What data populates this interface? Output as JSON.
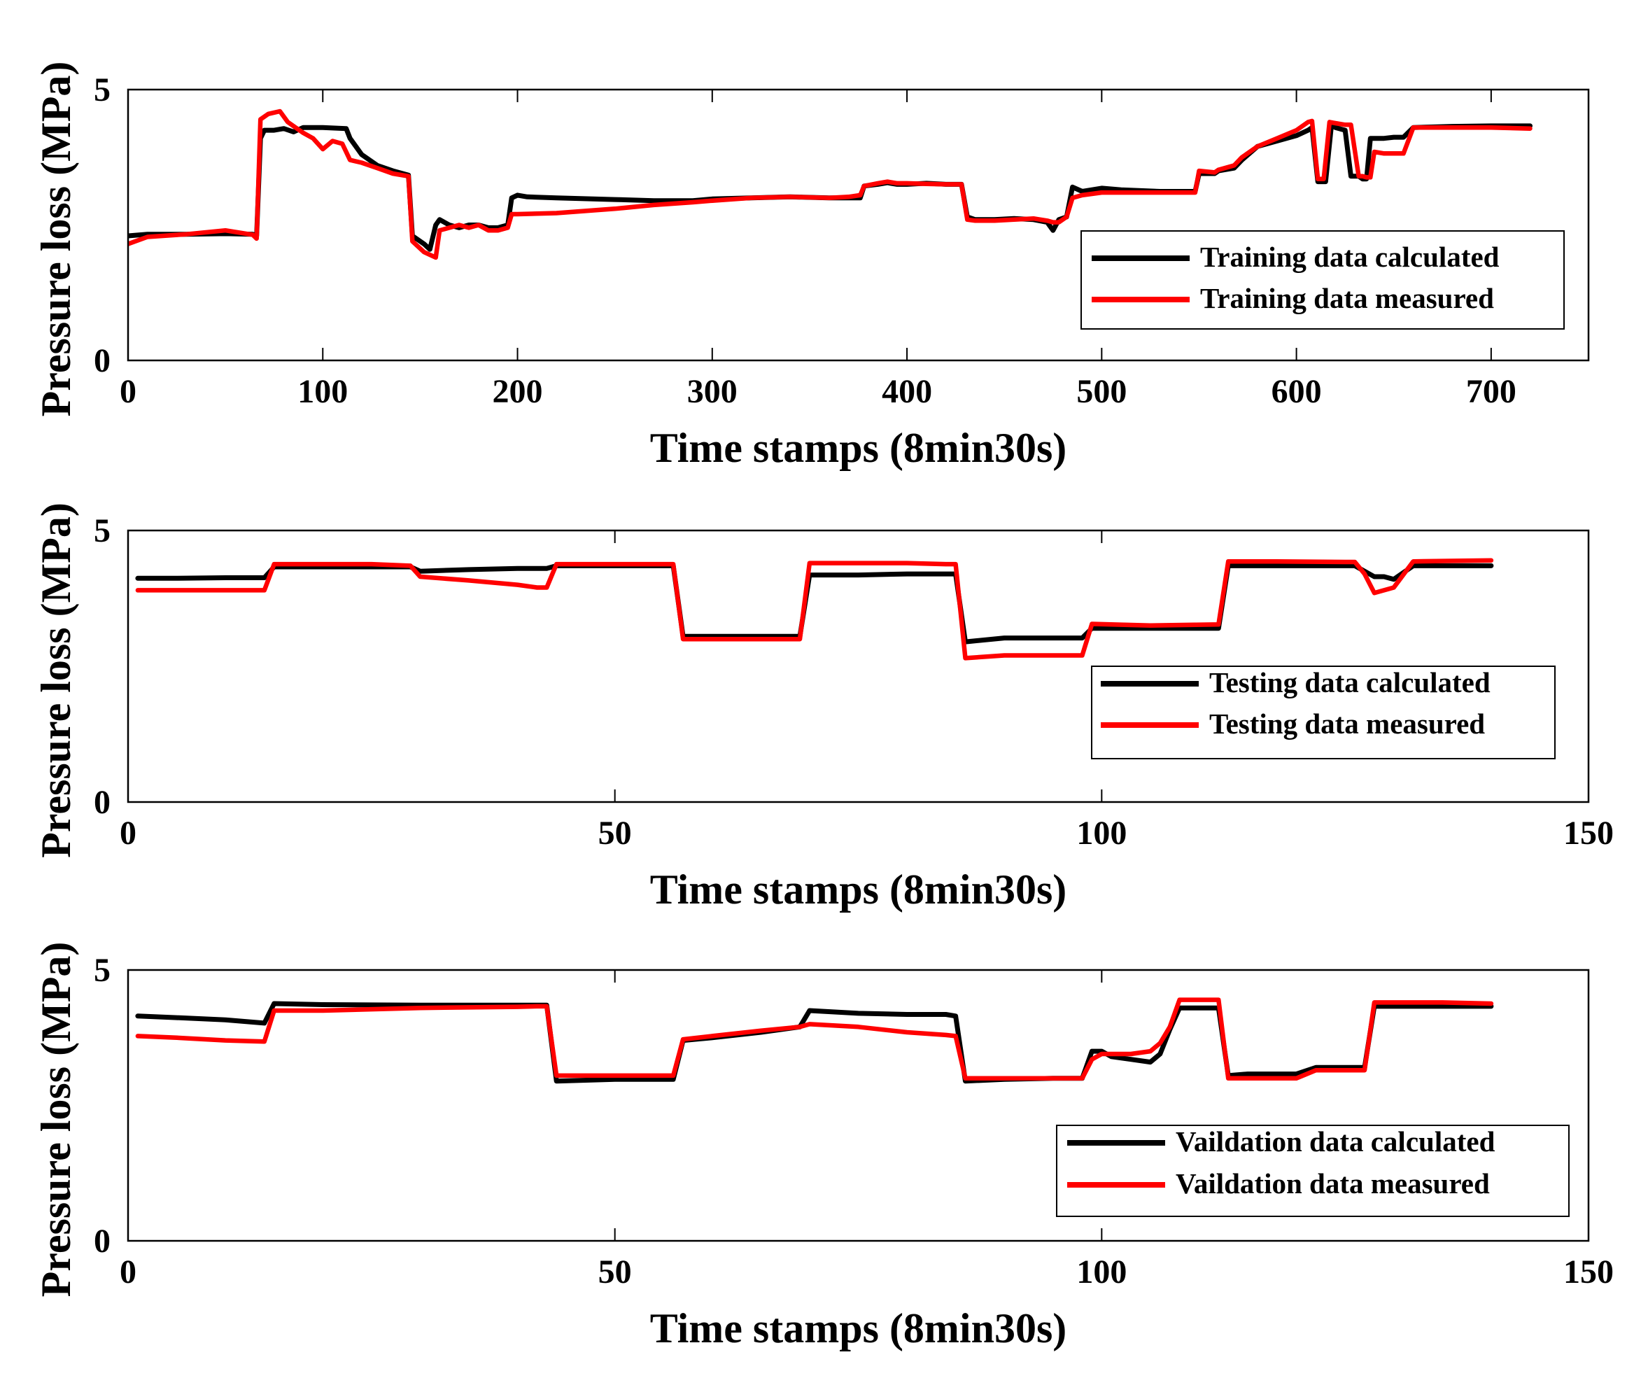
{
  "chart_data": [
    {
      "type": "line",
      "title": "",
      "xlabel": "Time stamps (8min30s)",
      "ylabel": "Pressure loss (MPa)",
      "xlim": [
        0,
        750
      ],
      "ylim": [
        0,
        5
      ],
      "xticks": [
        0,
        100,
        200,
        300,
        400,
        500,
        600,
        700
      ],
      "yticks": [
        0,
        5
      ],
      "grid": false,
      "legend_position": "bottom-right",
      "series": [
        {
          "name": "Training data calculated",
          "color": "#000000",
          "x": [
            0,
            10,
            30,
            50,
            64,
            66,
            68,
            70,
            75,
            80,
            85,
            90,
            100,
            112,
            114,
            120,
            128,
            136,
            144,
            146,
            152,
            155,
            158,
            160,
            165,
            170,
            175,
            180,
            185,
            190,
            195,
            197,
            200,
            205,
            220,
            250,
            270,
            290,
            300,
            320,
            340,
            360,
            370,
            376,
            378,
            385,
            390,
            395,
            400,
            410,
            420,
            428,
            431,
            435,
            445,
            455,
            465,
            472,
            475,
            478,
            482,
            485,
            490,
            500,
            510,
            530,
            540,
            548,
            550,
            558,
            560,
            568,
            572,
            580,
            590,
            600,
            606,
            608,
            611,
            615,
            618,
            620,
            625,
            628,
            632,
            634,
            636,
            638,
            640,
            645,
            650,
            655,
            660,
            680,
            700,
            720
          ],
          "y": [
            2.3,
            2.33,
            2.33,
            2.34,
            2.33,
            2.3,
            4.1,
            4.25,
            4.25,
            4.28,
            4.22,
            4.3,
            4.3,
            4.28,
            4.1,
            3.8,
            3.6,
            3.5,
            3.42,
            2.3,
            2.15,
            2.05,
            2.5,
            2.6,
            2.5,
            2.45,
            2.5,
            2.5,
            2.45,
            2.45,
            2.5,
            3.0,
            3.05,
            3.02,
            3.0,
            2.97,
            2.95,
            2.95,
            2.98,
            3.0,
            3.02,
            3.0,
            3.0,
            3.0,
            3.22,
            3.25,
            3.28,
            3.25,
            3.25,
            3.27,
            3.25,
            3.25,
            2.65,
            2.6,
            2.6,
            2.62,
            2.6,
            2.55,
            2.4,
            2.6,
            2.65,
            3.2,
            3.12,
            3.18,
            3.15,
            3.12,
            3.12,
            3.12,
            3.45,
            3.45,
            3.5,
            3.55,
            3.7,
            3.95,
            4.05,
            4.15,
            4.25,
            4.3,
            3.3,
            3.3,
            4.35,
            4.3,
            4.25,
            3.4,
            3.4,
            3.35,
            3.35,
            4.1,
            4.1,
            4.1,
            4.12,
            4.12,
            4.3,
            4.32,
            4.33,
            4.33
          ]
        },
        {
          "name": "Training data measured",
          "color": "#ff0000",
          "x": [
            0,
            10,
            30,
            50,
            64,
            66,
            68,
            72,
            78,
            82,
            86,
            90,
            95,
            100,
            105,
            110,
            114,
            120,
            128,
            136,
            144,
            146,
            152,
            155,
            158,
            160,
            165,
            170,
            175,
            180,
            185,
            190,
            195,
            197,
            200,
            220,
            250,
            270,
            290,
            300,
            320,
            340,
            360,
            370,
            376,
            378,
            385,
            390,
            395,
            400,
            410,
            420,
            428,
            431,
            435,
            445,
            455,
            465,
            472,
            475,
            478,
            482,
            485,
            490,
            500,
            510,
            530,
            540,
            548,
            550,
            558,
            560,
            568,
            572,
            580,
            590,
            600,
            606,
            608,
            611,
            614,
            617,
            620,
            625,
            628,
            632,
            634,
            636,
            638,
            640,
            645,
            650,
            655,
            660,
            680,
            700,
            720
          ],
          "y": [
            2.15,
            2.28,
            2.33,
            2.4,
            2.32,
            2.25,
            4.45,
            4.55,
            4.6,
            4.4,
            4.3,
            4.2,
            4.1,
            3.9,
            4.05,
            4.0,
            3.7,
            3.65,
            3.55,
            3.45,
            3.4,
            2.2,
            2.0,
            1.95,
            1.9,
            2.4,
            2.45,
            2.5,
            2.45,
            2.5,
            2.4,
            2.4,
            2.45,
            2.7,
            2.7,
            2.72,
            2.8,
            2.87,
            2.92,
            2.95,
            3.0,
            3.02,
            3.0,
            3.02,
            3.05,
            3.22,
            3.27,
            3.3,
            3.27,
            3.27,
            3.26,
            3.25,
            3.25,
            2.6,
            2.58,
            2.58,
            2.6,
            2.62,
            2.58,
            2.55,
            2.55,
            2.65,
            3.0,
            3.05,
            3.1,
            3.1,
            3.1,
            3.1,
            3.1,
            3.5,
            3.47,
            3.52,
            3.6,
            3.75,
            3.95,
            4.1,
            4.25,
            4.4,
            4.42,
            3.35,
            3.35,
            4.4,
            4.38,
            4.35,
            4.35,
            3.4,
            3.4,
            3.38,
            3.38,
            3.85,
            3.82,
            3.82,
            3.82,
            4.3,
            4.3,
            4.3,
            4.28
          ]
        }
      ]
    },
    {
      "type": "line",
      "title": "",
      "xlabel": "Time stamps (8min30s)",
      "ylabel": "Pressure loss (MPa)",
      "xlim": [
        0,
        150
      ],
      "ylim": [
        0,
        5
      ],
      "xticks": [
        0,
        50,
        100,
        150
      ],
      "yticks": [
        0,
        5
      ],
      "grid": false,
      "legend_position": "bottom-right",
      "series": [
        {
          "name": "Testing data calculated",
          "color": "#000000",
          "x": [
            1,
            5,
            10,
            14,
            15,
            20,
            25,
            29,
            30,
            35,
            40,
            43,
            44,
            50,
            55,
            56,
            57,
            60,
            65,
            69,
            70,
            75,
            80,
            84,
            85,
            86,
            90,
            95,
            98,
            99,
            105,
            112,
            113,
            118,
            125,
            126,
            128,
            129,
            130,
            132,
            140
          ],
          "y": [
            4.12,
            4.12,
            4.13,
            4.13,
            4.33,
            4.33,
            4.33,
            4.33,
            4.25,
            4.28,
            4.3,
            4.3,
            4.35,
            4.35,
            4.35,
            4.35,
            3.05,
            3.05,
            3.05,
            3.05,
            4.18,
            4.18,
            4.2,
            4.2,
            4.2,
            2.95,
            3.02,
            3.02,
            3.02,
            3.2,
            3.2,
            3.2,
            4.35,
            4.35,
            4.35,
            4.35,
            4.15,
            4.15,
            4.1,
            4.35,
            4.35
          ]
        },
        {
          "name": "Testing data measured",
          "color": "#ff0000",
          "x": [
            1,
            5,
            10,
            14,
            15,
            20,
            25,
            29,
            30,
            35,
            40,
            42,
            43,
            44,
            50,
            55,
            56,
            57,
            60,
            65,
            69,
            70,
            75,
            80,
            84,
            85,
            86,
            90,
            95,
            98,
            99,
            105,
            112,
            113,
            118,
            125,
            126,
            127,
            128,
            130,
            132,
            140
          ],
          "y": [
            3.9,
            3.9,
            3.9,
            3.9,
            4.38,
            4.38,
            4.38,
            4.35,
            4.15,
            4.08,
            4.0,
            3.95,
            3.95,
            4.38,
            4.38,
            4.38,
            4.38,
            3.0,
            3.0,
            3.0,
            3.0,
            4.4,
            4.4,
            4.4,
            4.38,
            4.38,
            2.65,
            2.7,
            2.7,
            2.7,
            3.28,
            3.25,
            3.27,
            4.43,
            4.43,
            4.42,
            4.42,
            4.2,
            3.85,
            3.95,
            4.43,
            4.45
          ]
        }
      ]
    },
    {
      "type": "line",
      "title": "",
      "xlabel": "Time stamps (8min30s)",
      "ylabel": "Pressure loss (MPa)",
      "xlim": [
        0,
        150
      ],
      "ylim": [
        0,
        5
      ],
      "xticks": [
        0,
        50,
        100,
        150
      ],
      "yticks": [
        0,
        5
      ],
      "grid": false,
      "legend_position": "bottom-right",
      "series": [
        {
          "name": "Vaildation data calculated",
          "color": "#000000",
          "x": [
            1,
            5,
            10,
            14,
            15,
            20,
            30,
            40,
            42,
            43,
            44,
            50,
            55,
            56,
            57,
            60,
            65,
            69,
            70,
            75,
            80,
            84,
            85,
            86,
            90,
            95,
            98,
            99,
            100,
            101,
            103,
            105,
            106,
            107,
            108,
            112,
            113,
            115,
            120,
            122,
            123,
            127,
            128,
            130,
            135,
            140
          ],
          "y": [
            4.15,
            4.12,
            4.08,
            4.02,
            4.38,
            4.36,
            4.35,
            4.35,
            4.35,
            4.35,
            2.95,
            2.98,
            2.98,
            2.98,
            3.7,
            3.75,
            3.85,
            3.95,
            4.25,
            4.2,
            4.18,
            4.18,
            4.15,
            2.95,
            2.98,
            3.0,
            3.0,
            3.5,
            3.5,
            3.4,
            3.35,
            3.3,
            3.45,
            3.9,
            4.3,
            4.3,
            3.05,
            3.08,
            3.08,
            3.2,
            3.2,
            3.2,
            4.33,
            4.33,
            4.33,
            4.33
          ]
        },
        {
          "name": "Vaildation data measured",
          "color": "#ff0000",
          "x": [
            1,
            5,
            10,
            14,
            15,
            20,
            30,
            40,
            42,
            43,
            44,
            50,
            55,
            56,
            57,
            60,
            65,
            69,
            70,
            75,
            80,
            84,
            85,
            86,
            90,
            95,
            98,
            99,
            100,
            101,
            103,
            105,
            106,
            107,
            108,
            112,
            113,
            115,
            120,
            122,
            123,
            127,
            128,
            130,
            135,
            140
          ],
          "y": [
            3.78,
            3.75,
            3.7,
            3.68,
            4.25,
            4.25,
            4.3,
            4.32,
            4.33,
            4.33,
            3.05,
            3.05,
            3.05,
            3.05,
            3.72,
            3.78,
            3.88,
            3.95,
            4.0,
            3.95,
            3.85,
            3.8,
            3.78,
            3.0,
            3.0,
            3.0,
            3.0,
            3.35,
            3.45,
            3.45,
            3.45,
            3.5,
            3.65,
            3.95,
            4.45,
            4.45,
            3.0,
            3.0,
            3.0,
            3.15,
            3.15,
            3.15,
            4.4,
            4.4,
            4.4,
            4.38
          ]
        }
      ]
    }
  ]
}
